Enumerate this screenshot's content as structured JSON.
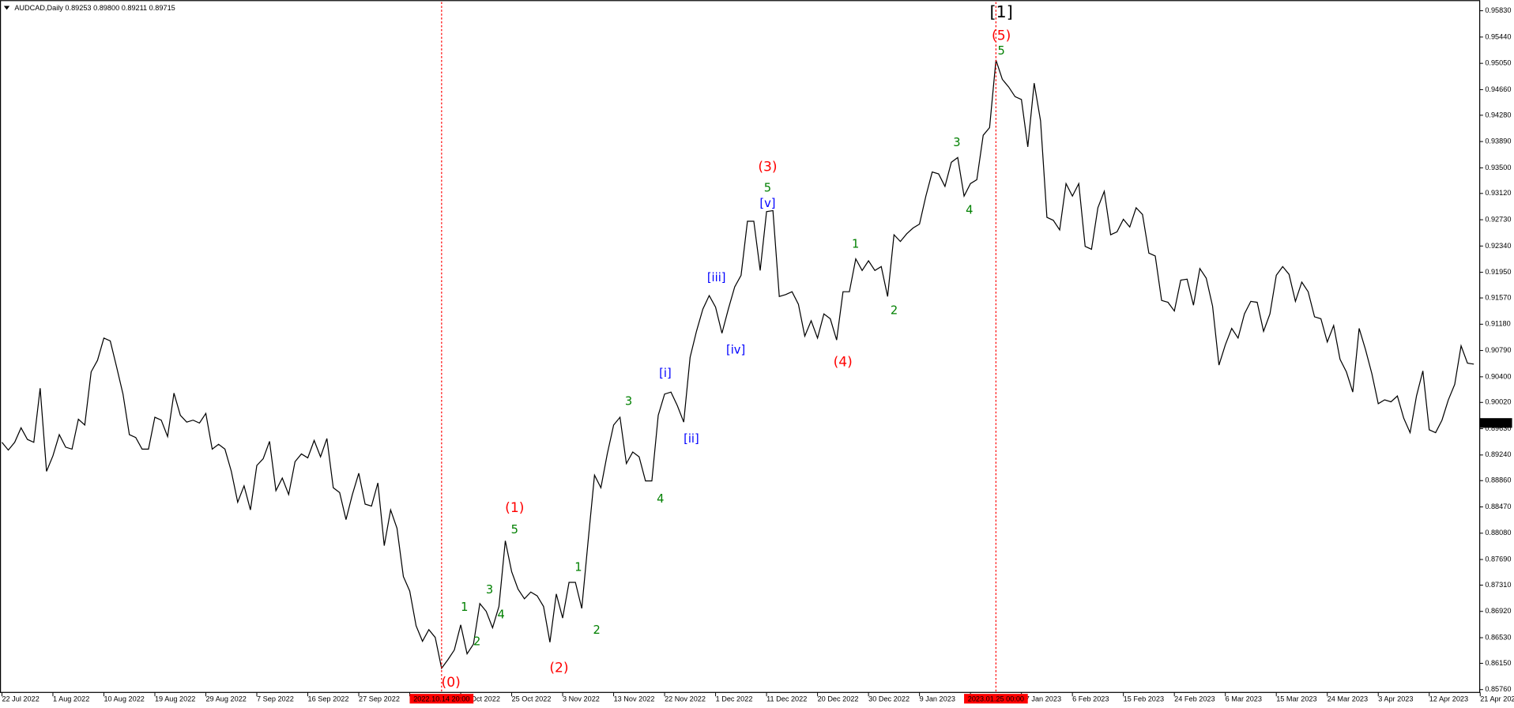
{
  "chart_data": {
    "type": "line",
    "title": "AUDCAD,Daily  0.89253 0.89800 0.89211 0.89715",
    "color": "#000000",
    "values": [
      0.89428,
      0.89313,
      0.89428,
      0.89643,
      0.89471,
      0.89428,
      0.9023,
      0.88998,
      0.89227,
      0.89542,
      0.89356,
      0.89327,
      0.89771,
      0.89685,
      0.90473,
      0.90645,
      0.90975,
      0.90932,
      0.90545,
      0.90144,
      0.89542,
      0.89499,
      0.89327,
      0.89327,
      0.898,
      0.89757,
      0.89514,
      0.90158,
      0.89829,
      0.89728,
      0.89757,
      0.89714,
      0.89857,
      0.89327,
      0.89399,
      0.89327,
      0.88998,
      0.8854,
      0.88783,
      0.88425,
      0.89084,
      0.89184,
      0.89442,
      0.88711,
      0.88898,
      0.88654,
      0.89141,
      0.89256,
      0.89198,
      0.89456,
      0.89213,
      0.89485,
      0.88754,
      0.88683,
      0.88282,
      0.88654,
      0.88969,
      0.88511,
      0.88482,
      0.88826,
      0.87895,
      0.88425,
      0.88153,
      0.87437,
      0.87222,
      0.86706,
      0.86477,
      0.86649,
      0.86534,
      0.86076,
      0.86205,
      0.86348,
      0.8672,
      0.86291,
      0.86434,
      0.87036,
      0.86921,
      0.86677,
      0.86993,
      0.87967,
      0.87508,
      0.8725,
      0.87107,
      0.87207,
      0.8715,
      0.86993,
      0.86463,
      0.87179,
      0.86821,
      0.87351,
      0.87351,
      0.86964,
      0.87967,
      0.88941,
      0.88754,
      0.89256,
      0.89685,
      0.898,
      0.89113,
      0.89284,
      0.89213,
      0.88855,
      0.88855,
      0.89829,
      0.90144,
      0.90173,
      0.89972,
      0.89728,
      0.90688,
      0.91075,
      0.91404,
      0.91605,
      0.91433,
      0.91046,
      0.91404,
      0.91734,
      0.91906,
      0.92708,
      0.92708,
      0.91977,
      0.92851,
      0.92865,
      0.91591,
      0.91619,
      0.91662,
      0.91476,
      0.91003,
      0.91232,
      0.90975,
      0.91333,
      0.91261,
      0.90946,
      0.91662,
      0.91662,
      0.92149,
      0.91977,
      0.92121,
      0.91977,
      0.92035,
      0.91591,
      0.92507,
      0.92407,
      0.92522,
      0.92608,
      0.92665,
      0.9308,
      0.93438,
      0.9341,
      0.93224,
      0.93582,
      0.93653,
      0.9308,
      0.93266,
      0.93324,
      0.93983,
      0.94097,
      0.951,
      0.94813,
      0.94699,
      0.94556,
      0.94513,
      0.93811,
      0.94756,
      0.94198,
      0.92765,
      0.92722,
      0.92579,
      0.93266,
      0.9308,
      0.93266,
      0.92335,
      0.92292,
      0.92908,
      0.93152,
      0.92507,
      0.9255,
      0.92737,
      0.92622,
      0.92908,
      0.92808,
      0.92235,
      0.92192,
      0.91533,
      0.91505,
      0.91376,
      0.91834,
      0.91848,
      0.91462,
      0.92006,
      0.91863,
      0.91447,
      0.90574,
      0.90874,
      0.91118,
      0.90975,
      0.91333,
      0.91519,
      0.91505,
      0.91075,
      0.91333,
      0.91906,
      0.92035,
      0.9192,
      0.91519,
      0.91805,
      0.91662,
      0.9129,
      0.91261,
      0.90917,
      0.91161,
      0.9066,
      0.90473,
      0.90173,
      0.91118,
      0.90803,
      0.90445,
      0.90001,
      0.90058,
      0.90029,
      0.90115,
      0.89786,
      0.89571,
      0.90115,
      0.90488,
      0.89614,
      0.89571,
      0.89757,
      0.90058,
      0.90287,
      0.9086,
      0.90602,
      0.90588
    ],
    "xlim": [
      0,
      232
    ],
    "ylim": [
      0.85718,
      0.95959
    ],
    "xticks": [
      {
        "value": 0,
        "label": "22 Jul 2022"
      },
      {
        "value": 8,
        "label": "1 Aug 2022"
      },
      {
        "value": 16,
        "label": "10 Aug 2022"
      },
      {
        "value": 24,
        "label": "19 Aug 2022"
      },
      {
        "value": 32,
        "label": "29 Aug 2022"
      },
      {
        "value": 40,
        "label": "7 Sep 2022"
      },
      {
        "value": 48,
        "label": "16 Sep 2022"
      },
      {
        "value": 56,
        "label": "27 Sep 2022"
      },
      {
        "value": 64,
        "label": "6 Oct 2022"
      },
      {
        "value": 72,
        "label": "16 Oct 2022"
      },
      {
        "value": 80,
        "label": "25 Oct 2022"
      },
      {
        "value": 88,
        "label": "3 Nov 2022"
      },
      {
        "value": 96,
        "label": "13 Nov 2022"
      },
      {
        "value": 104,
        "label": "22 Nov 2022"
      },
      {
        "value": 112,
        "label": "1 Dec 2022"
      },
      {
        "value": 120,
        "label": "11 Dec 2022"
      },
      {
        "value": 128,
        "label": "20 Dec 2022"
      },
      {
        "value": 136,
        "label": "30 Dec 2022"
      },
      {
        "value": 144,
        "label": "9 Jan 2023"
      },
      {
        "value": 152,
        "label": "18 Jan 2023"
      },
      {
        "value": 160,
        "label": "27 Jan 2023"
      },
      {
        "value": 168,
        "label": "6 Feb 2023"
      },
      {
        "value": 176,
        "label": "15 Feb 2023"
      },
      {
        "value": 184,
        "label": "24 Feb 2023"
      },
      {
        "value": 192,
        "label": "6 Mar 2023"
      },
      {
        "value": 200,
        "label": "15 Mar 2023"
      },
      {
        "value": 208,
        "label": "24 Mar 2023"
      },
      {
        "value": 216,
        "label": "3 Apr 2023"
      },
      {
        "value": 224,
        "label": "12 Apr 2023"
      },
      {
        "value": 232,
        "label": "21 Apr 2023"
      }
    ],
    "yticks": [
      {
        "value": 0.9583,
        "label": "0.95830"
      },
      {
        "value": 0.9544,
        "label": "0.95440"
      },
      {
        "value": 0.9505,
        "label": "0.95050"
      },
      {
        "value": 0.9466,
        "label": "0.94660"
      },
      {
        "value": 0.9428,
        "label": "0.94280"
      },
      {
        "value": 0.9389,
        "label": "0.93890"
      },
      {
        "value": 0.935,
        "label": "0.93500"
      },
      {
        "value": 0.9312,
        "label": "0.93120"
      },
      {
        "value": 0.9273,
        "label": "0.92730"
      },
      {
        "value": 0.9234,
        "label": "0.92340"
      },
      {
        "value": 0.9195,
        "label": "0.91950"
      },
      {
        "value": 0.9157,
        "label": "0.91570"
      },
      {
        "value": 0.9118,
        "label": "0.91180"
      },
      {
        "value": 0.9079,
        "label": "0.90790"
      },
      {
        "value": 0.904,
        "label": "0.90400"
      },
      {
        "value": 0.9002,
        "label": "0.90020"
      },
      {
        "value": 0.8963,
        "label": "0.89630"
      },
      {
        "value": 0.8924,
        "label": "0.89240"
      },
      {
        "value": 0.8886,
        "label": "0.88860"
      },
      {
        "value": 0.8847,
        "label": "0.88470"
      },
      {
        "value": 0.8808,
        "label": "0.88080"
      },
      {
        "value": 0.8769,
        "label": "0.87690"
      },
      {
        "value": 0.8731,
        "label": "0.87310"
      },
      {
        "value": 0.8692,
        "label": "0.86920"
      },
      {
        "value": 0.8653,
        "label": "0.86530"
      },
      {
        "value": 0.8615,
        "label": "0.86150"
      },
      {
        "value": 0.8576,
        "label": "0.85760"
      }
    ],
    "last_price": 0.89715,
    "marker_color": "#ff0000",
    "markers": [
      {
        "x": 69,
        "label": "2022.10.14 20:00"
      },
      {
        "x": 156,
        "label": "2023.01.25 00:00"
      }
    ],
    "annotations": [
      {
        "text": "[1]",
        "color": "#000000"
      },
      {
        "text": "(5)",
        "color": "#ff0000"
      },
      {
        "text": "5",
        "color": "#008000"
      },
      {
        "text": "(3)",
        "color": "#ff0000"
      },
      {
        "text": "5",
        "color": "#008000"
      },
      {
        "text": "[v]",
        "color": "#0000ff"
      },
      {
        "text": "3",
        "color": "#008000"
      },
      {
        "text": "4",
        "color": "#008000"
      },
      {
        "text": "1",
        "color": "#008000"
      },
      {
        "text": "2",
        "color": "#008000"
      },
      {
        "text": "(4)",
        "color": "#ff0000"
      },
      {
        "text": "[iii]",
        "color": "#0000ff"
      },
      {
        "text": "[iv]",
        "color": "#0000ff"
      },
      {
        "text": "[i]",
        "color": "#0000ff"
      },
      {
        "text": "[ii]",
        "color": "#0000ff"
      },
      {
        "text": "3",
        "color": "#008000"
      },
      {
        "text": "4",
        "color": "#008000"
      },
      {
        "text": "(1)",
        "color": "#ff0000"
      },
      {
        "text": "5",
        "color": "#008000"
      },
      {
        "text": "3",
        "color": "#008000"
      },
      {
        "text": "1",
        "color": "#008000"
      },
      {
        "text": "4",
        "color": "#008000"
      },
      {
        "text": "2",
        "color": "#008000"
      },
      {
        "text": "(0)",
        "color": "#ff0000"
      },
      {
        "text": "(2)",
        "color": "#ff0000"
      },
      {
        "text": "1",
        "color": "#008000"
      },
      {
        "text": "2",
        "color": "#008000"
      }
    ]
  }
}
